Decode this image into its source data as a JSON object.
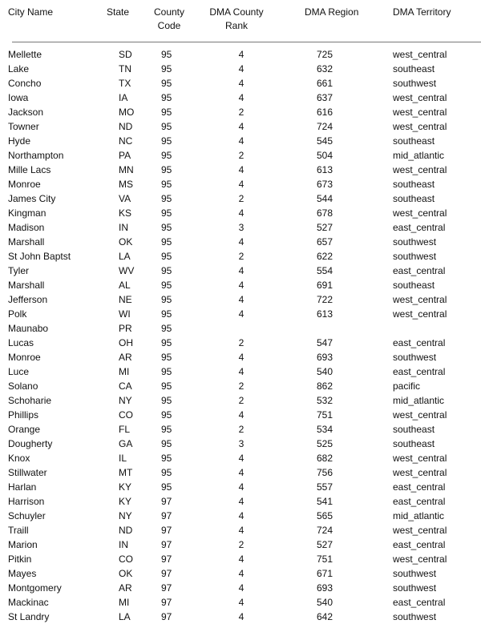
{
  "headers": {
    "city": "City Name",
    "state": "State",
    "county_code_1": "County",
    "county_code_2": "Code",
    "rank_1": "DMA County",
    "rank_2": "Rank",
    "region": "DMA Region",
    "territory": "DMA Territory"
  },
  "rows": [
    [
      "Mellette",
      "SD",
      "95",
      "4",
      "725",
      "west_central"
    ],
    [
      "Lake",
      "TN",
      "95",
      "4",
      "632",
      "southeast"
    ],
    [
      "Concho",
      "TX",
      "95",
      "4",
      "661",
      "southwest"
    ],
    [
      "Iowa",
      "IA",
      "95",
      "4",
      "637",
      "west_central"
    ],
    [
      "Jackson",
      "MO",
      "95",
      "2",
      "616",
      "west_central"
    ],
    [
      "Towner",
      "ND",
      "95",
      "4",
      "724",
      "west_central"
    ],
    [
      "Hyde",
      "NC",
      "95",
      "4",
      "545",
      "southeast"
    ],
    [
      "Northampton",
      "PA",
      "95",
      "2",
      "504",
      "mid_atlantic"
    ],
    [
      "Mille Lacs",
      "MN",
      "95",
      "4",
      "613",
      "west_central"
    ],
    [
      "Monroe",
      "MS",
      "95",
      "4",
      "673",
      "southeast"
    ],
    [
      "James City",
      "VA",
      "95",
      "2",
      "544",
      "southeast"
    ],
    [
      "Kingman",
      "KS",
      "95",
      "4",
      "678",
      "west_central"
    ],
    [
      "Madison",
      "IN",
      "95",
      "3",
      "527",
      "east_central"
    ],
    [
      "Marshall",
      "OK",
      "95",
      "4",
      "657",
      "southwest"
    ],
    [
      "St John Baptst",
      "LA",
      "95",
      "2",
      "622",
      "southwest"
    ],
    [
      "Tyler",
      "WV",
      "95",
      "4",
      "554",
      "east_central"
    ],
    [
      "Marshall",
      "AL",
      "95",
      "4",
      "691",
      "southeast"
    ],
    [
      "Jefferson",
      "NE",
      "95",
      "4",
      "722",
      "west_central"
    ],
    [
      "Polk",
      "WI",
      "95",
      "4",
      "613",
      "west_central"
    ],
    [
      "Maunabo",
      "PR",
      "95",
      "",
      "",
      ""
    ],
    [
      "Lucas",
      "OH",
      "95",
      "2",
      "547",
      "east_central"
    ],
    [
      "Monroe",
      "AR",
      "95",
      "4",
      "693",
      "southwest"
    ],
    [
      "Luce",
      "MI",
      "95",
      "4",
      "540",
      "east_central"
    ],
    [
      "Solano",
      "CA",
      "95",
      "2",
      "862",
      "pacific"
    ],
    [
      "Schoharie",
      "NY",
      "95",
      "2",
      "532",
      "mid_atlantic"
    ],
    [
      "Phillips",
      "CO",
      "95",
      "4",
      "751",
      "west_central"
    ],
    [
      "Orange",
      "FL",
      "95",
      "2",
      "534",
      "southeast"
    ],
    [
      "Dougherty",
      "GA",
      "95",
      "3",
      "525",
      "southeast"
    ],
    [
      "Knox",
      "IL",
      "95",
      "4",
      "682",
      "west_central"
    ],
    [
      "Stillwater",
      "MT",
      "95",
      "4",
      "756",
      "west_central"
    ],
    [
      "Harlan",
      "KY",
      "95",
      "4",
      "557",
      "east_central"
    ],
    [
      "Harrison",
      "KY",
      "97",
      "4",
      "541",
      "east_central"
    ],
    [
      "Schuyler",
      "NY",
      "97",
      "4",
      "565",
      "mid_atlantic"
    ],
    [
      "Traill",
      "ND",
      "97",
      "4",
      "724",
      "west_central"
    ],
    [
      "Marion",
      "IN",
      "97",
      "2",
      "527",
      "east_central"
    ],
    [
      "Pitkin",
      "CO",
      "97",
      "4",
      "751",
      "west_central"
    ],
    [
      "Mayes",
      "OK",
      "97",
      "4",
      "671",
      "southwest"
    ],
    [
      "Montgomery",
      "AR",
      "97",
      "4",
      "693",
      "southwest"
    ],
    [
      "Mackinac",
      "MI",
      "97",
      "4",
      "540",
      "east_central"
    ],
    [
      "St Landry",
      "LA",
      "97",
      "4",
      "642",
      "southwest"
    ]
  ]
}
